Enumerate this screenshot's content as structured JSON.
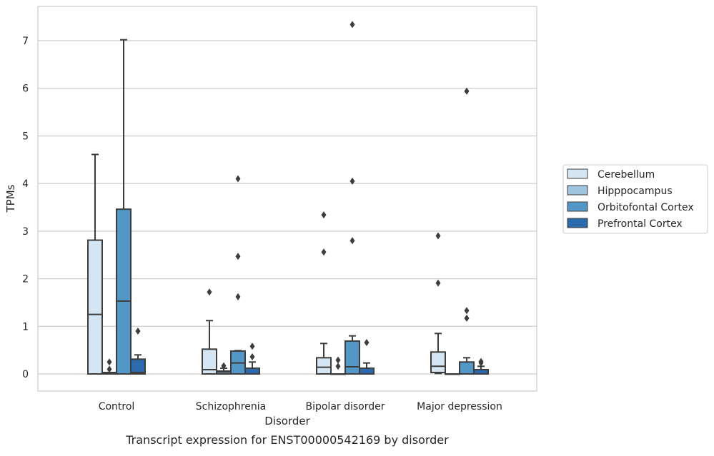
{
  "chart_data": {
    "type": "box",
    "xlabel": "Disorder",
    "ylabel": "TPMs",
    "caption": "Transcript expression for ENST00000542169 by disorder",
    "ylim": [
      -0.36,
      7.72
    ],
    "y_ticks": [
      0,
      1,
      2,
      3,
      4,
      5,
      6,
      7
    ],
    "grid": true,
    "legend_position": "right",
    "categories": [
      "Control",
      "Schizophrenia",
      "Bipolar disorder",
      "Major depression"
    ],
    "series": [
      {
        "name": "Cerebellum",
        "color": "#d6e5f2",
        "boxes": [
          {
            "min": 0,
            "q1": 0,
            "median": 1.25,
            "q3": 2.81,
            "max": 4.61,
            "outliers": []
          },
          {
            "min": 0,
            "q1": 0,
            "median": 0.09,
            "q3": 0.52,
            "max": 1.12,
            "outliers": [
              1.72
            ]
          },
          {
            "min": 0,
            "q1": 0,
            "median": 0.14,
            "q3": 0.34,
            "max": 0.64,
            "outliers": [
              2.56,
              3.34
            ]
          },
          {
            "min": 0.01,
            "q1": 0.03,
            "median": 0.16,
            "q3": 0.46,
            "max": 0.85,
            "outliers": [
              1.91,
              2.9
            ]
          }
        ]
      },
      {
        "name": "Hipppocampus",
        "color": "#9fc4df",
        "boxes": [
          {
            "min": 0,
            "q1": 0,
            "median": 0.01,
            "q3": 0.03,
            "max": 0.03,
            "outliers": [
              0.1,
              0.25
            ]
          },
          {
            "min": 0,
            "q1": 0,
            "median": 0.04,
            "q3": 0.06,
            "max": 0.12,
            "outliers": [
              0.17
            ]
          },
          {
            "min": 0,
            "q1": 0,
            "median": 0,
            "q3": 0,
            "max": 0,
            "outliers": [
              0.16,
              0.29
            ]
          },
          {
            "min": 0,
            "q1": 0,
            "median": 0,
            "q3": 0,
            "max": 0,
            "outliers": []
          }
        ]
      },
      {
        "name": "Orbitofontal Cortex",
        "color": "#5297c6",
        "boxes": [
          {
            "min": 0,
            "q1": 0,
            "median": 1.53,
            "q3": 3.46,
            "max": 7.02,
            "outliers": []
          },
          {
            "min": 0,
            "q1": 0,
            "median": 0.23,
            "q3": 0.48,
            "max": 0.49,
            "outliers": [
              1.62,
              2.47,
              4.1
            ]
          },
          {
            "min": 0,
            "q1": 0,
            "median": 0.15,
            "q3": 0.69,
            "max": 0.8,
            "outliers": [
              2.8,
              4.05,
              7.34
            ]
          },
          {
            "min": 0,
            "q1": 0,
            "median": 0,
            "q3": 0.25,
            "max": 0.34,
            "outliers": [
              1.17,
              1.33,
              5.94
            ]
          }
        ]
      },
      {
        "name": "Prefrontal Cortex",
        "color": "#2a6aad",
        "boxes": [
          {
            "min": 0,
            "q1": 0,
            "median": 0.03,
            "q3": 0.31,
            "max": 0.4,
            "outliers": [
              0.9
            ]
          },
          {
            "min": 0,
            "q1": 0,
            "median": 0,
            "q3": 0.12,
            "max": 0.25,
            "outliers": [
              0.36,
              0.58
            ]
          },
          {
            "min": 0,
            "q1": 0,
            "median": 0,
            "q3": 0.12,
            "max": 0.23,
            "outliers": [
              0.66
            ]
          },
          {
            "min": 0,
            "q1": 0,
            "median": 0,
            "q3": 0.09,
            "max": 0.16,
            "outliers": [
              0.23,
              0.26
            ]
          }
        ]
      }
    ]
  }
}
